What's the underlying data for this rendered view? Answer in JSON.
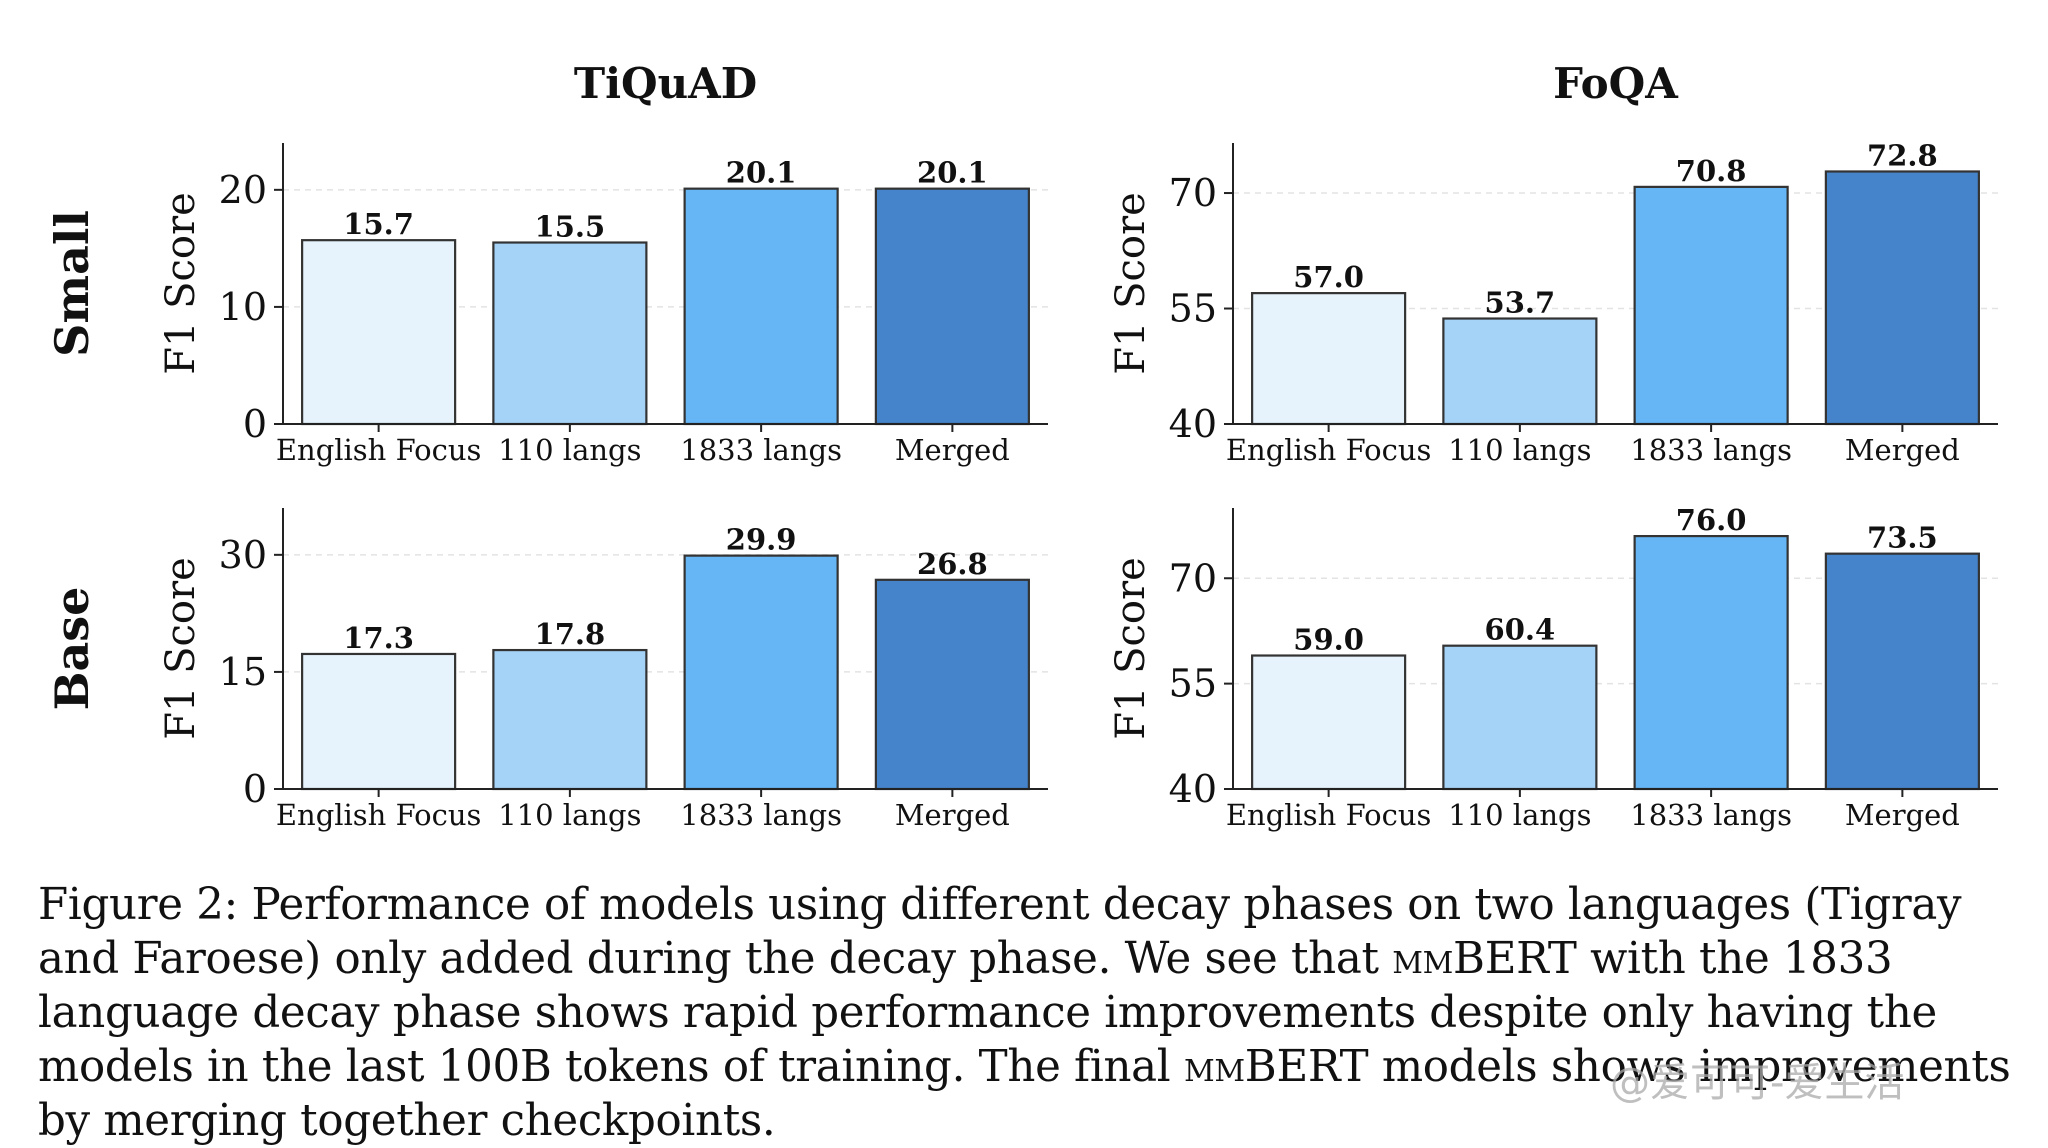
{
  "chart_data": [
    {
      "type": "bar",
      "dataset": "TiQuAD",
      "size": "Small",
      "title": "TiQuAD",
      "row_label": "Small",
      "ylabel": "F1 Score",
      "categories": [
        "English Focus",
        "110 langs",
        "1833 langs",
        "Merged"
      ],
      "values": [
        15.7,
        15.5,
        20.1,
        20.1
      ],
      "value_labels": [
        "15.7",
        "15.5",
        "20.1",
        "20.1"
      ],
      "ylim": [
        0,
        24
      ],
      "yticks": [
        0,
        10,
        20
      ],
      "ytick_labels": [
        "0",
        "10",
        "20"
      ]
    },
    {
      "type": "bar",
      "dataset": "FoQA",
      "size": "Small",
      "title": "FoQA",
      "row_label": "",
      "ylabel": "F1 Score",
      "categories": [
        "English Focus",
        "110 langs",
        "1833 langs",
        "Merged"
      ],
      "values": [
        57.0,
        53.7,
        70.8,
        72.8
      ],
      "value_labels": [
        "57.0",
        "53.7",
        "70.8",
        "72.8"
      ],
      "ylim": [
        40,
        76.5
      ],
      "yticks": [
        40,
        55,
        70
      ],
      "ytick_labels": [
        "40",
        "55",
        "70"
      ]
    },
    {
      "type": "bar",
      "dataset": "TiQuAD",
      "size": "Base",
      "title": "",
      "row_label": "Base",
      "ylabel": "F1 Score",
      "categories": [
        "English Focus",
        "110 langs",
        "1833 langs",
        "Merged"
      ],
      "values": [
        17.3,
        17.8,
        29.9,
        26.8
      ],
      "value_labels": [
        "17.3",
        "17.8",
        "29.9",
        "26.8"
      ],
      "ylim": [
        0,
        36
      ],
      "yticks": [
        0,
        15,
        30
      ],
      "ytick_labels": [
        "0",
        "15",
        "30"
      ]
    },
    {
      "type": "bar",
      "dataset": "FoQA",
      "size": "Base",
      "title": "",
      "row_label": "",
      "ylabel": "F1 Score",
      "categories": [
        "English Focus",
        "110 langs",
        "1833 langs",
        "Merged"
      ],
      "values": [
        59.0,
        60.4,
        76.0,
        73.5
      ],
      "value_labels": [
        "59.0",
        "60.4",
        "76.0",
        "73.5"
      ],
      "ylim": [
        40,
        80
      ],
      "yticks": [
        40,
        55,
        70
      ],
      "ytick_labels": [
        "40",
        "55",
        "70"
      ]
    }
  ],
  "colors": {
    "bars": [
      "#e7f3fc",
      "#a5d2f7",
      "#66b6f5",
      "#4584cb"
    ],
    "edge": "#333333",
    "grid": "#e3e3e3",
    "axis": "#222222"
  },
  "caption": {
    "part1": "Figure 2: Performance of models using different decay phases on two languages (Tigray and Faroese) only added during the decay phase. We see that ",
    "brand": "mmBERT",
    "part2": " with the 1833 language decay phase shows rapid performance improvements despite only having the models in the last 100B tokens of training. The final ",
    "part3": " models shows improvements by merging together checkpoints."
  },
  "watermark": "@爱可可-爱生活"
}
